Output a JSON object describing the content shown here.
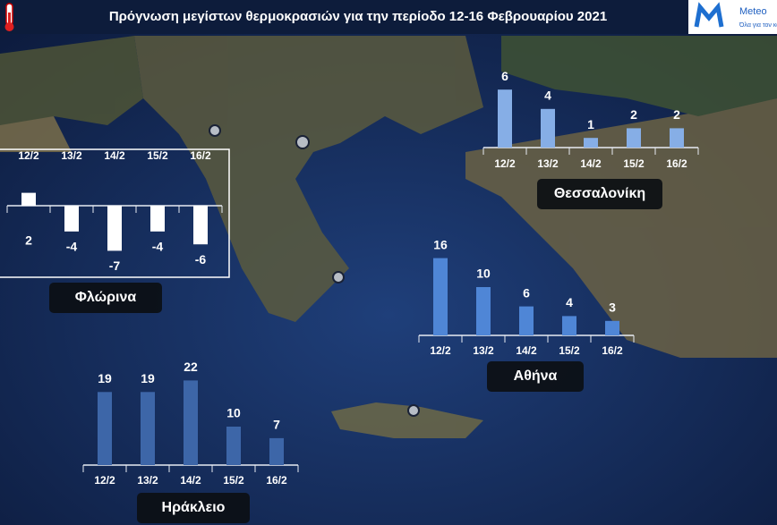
{
  "title": "Πρόγνωση μεγίστων θερμοκρασιών για την περίοδο 12-16 Φεβρουαρίου 2021",
  "logo": {
    "name": "Meteo",
    "tagline": "Όλα για τον καιρό"
  },
  "chart_data": [
    {
      "type": "bar",
      "title": "Φλώρινα",
      "categories": [
        "12/2",
        "13/2",
        "14/2",
        "15/2",
        "16/2"
      ],
      "values": [
        2,
        -4,
        -7,
        -4,
        -6
      ],
      "color": "#ffffff"
    },
    {
      "type": "bar",
      "title": "Θεσσαλονίκη",
      "categories": [
        "12/2",
        "13/2",
        "14/2",
        "15/2",
        "16/2"
      ],
      "values": [
        6,
        4,
        1,
        2,
        2
      ],
      "color": "#86aee6"
    },
    {
      "type": "bar",
      "title": "Αθήνα",
      "categories": [
        "12/2",
        "13/2",
        "14/2",
        "15/2",
        "16/2"
      ],
      "values": [
        16,
        10,
        6,
        4,
        3
      ],
      "color": "#4f86d6"
    },
    {
      "type": "bar",
      "title": "Ηράκλειο",
      "categories": [
        "12/2",
        "13/2",
        "14/2",
        "15/2",
        "16/2"
      ],
      "values": [
        19,
        19,
        22,
        10,
        7
      ],
      "color": "#3d66a8"
    }
  ]
}
